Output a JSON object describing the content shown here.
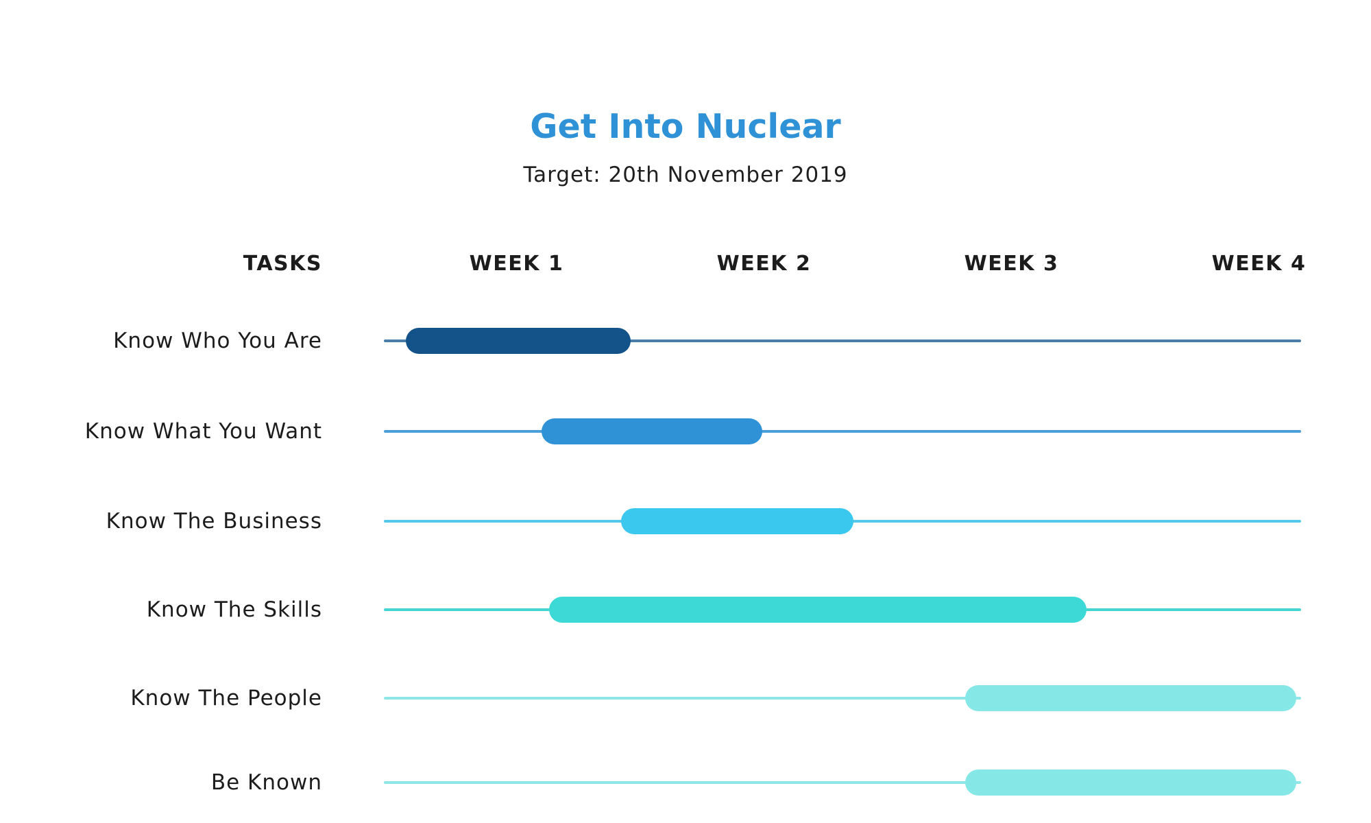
{
  "chart_data": {
    "type": "gantt",
    "title": "Get Into Nuclear",
    "subtitle": "Target: 20th November 2019",
    "task_header": "TASKS",
    "categories": [
      "WEEK 1",
      "WEEK 2",
      "WEEK 3",
      "WEEK 4"
    ],
    "xlim": [
      0,
      4
    ],
    "grid": false,
    "legend": "none",
    "tasks": [
      {
        "name": "Know Who You Are",
        "start": 0.08,
        "end": 0.99,
        "color": "#14538a"
      },
      {
        "name": "Know What You Want",
        "start": 0.63,
        "end": 1.52,
        "color": "#2f92d6"
      },
      {
        "name": "Know The Business",
        "start": 0.95,
        "end": 1.89,
        "color": "#3ac8ef"
      },
      {
        "name": "Know The Skills",
        "start": 0.66,
        "end": 2.83,
        "color": "#3dd9d6"
      },
      {
        "name": "Know The People",
        "start": 2.34,
        "end": 3.68,
        "color": "#86e8e6"
      },
      {
        "name": "Be Known",
        "start": 2.34,
        "end": 3.68,
        "color": "#86e8e6"
      }
    ]
  },
  "colors": {
    "title": "#2f92d6",
    "text": "#1c1c1c",
    "tracks": [
      "#4a7ea8",
      "#4b9fd9",
      "#55c8ea",
      "#45d5d3",
      "#8ee6e6",
      "#8ee6e6"
    ]
  }
}
